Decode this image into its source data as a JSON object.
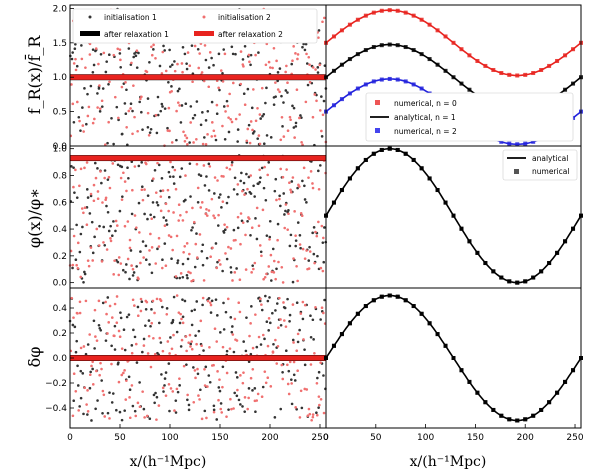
{
  "colors": {
    "black": "#000000",
    "red": "#e8231f",
    "blue": "#2222dd",
    "dot_black": "#333333",
    "dot_red": "#f07070"
  },
  "shared": {
    "xlabel": "x/(h⁻¹Mpc)",
    "xlim": [
      0,
      256
    ],
    "xticks": [
      "0",
      "50",
      "100",
      "150",
      "200",
      "250"
    ]
  },
  "chart_data": [
    {
      "type": "scatter",
      "row": 0,
      "col": 0,
      "ylabel": "f_R(x)/f̄_R",
      "ylim": [
        0,
        2.05
      ],
      "yticks": [
        "0.0",
        "0.5",
        "1.0",
        "1.5",
        "2.0"
      ],
      "series": [
        {
          "name": "initialisation 1",
          "kind": "random_points",
          "range": [
            0,
            2
          ]
        },
        {
          "name": "initialisation 2",
          "kind": "random_points",
          "range": [
            0,
            2
          ]
        },
        {
          "name": "after relaxation 1",
          "kind": "flat_band",
          "value": 1.0
        },
        {
          "name": "after relaxation 2",
          "kind": "flat_band",
          "value": 1.0
        }
      ],
      "legend": {
        "position": "top",
        "ncol": 2
      }
    },
    {
      "type": "line",
      "row": 0,
      "col": 1,
      "ylim": [
        0,
        2.05
      ],
      "series": [
        {
          "name": "numerical, n = 0",
          "offset": 1.5,
          "amplitude": 0.475,
          "color": "red"
        },
        {
          "name": "analytical, n = 1",
          "offset": 1.0,
          "amplitude": 0.475,
          "color": "black"
        },
        {
          "name": "numerical, n = 2",
          "offset": 0.5,
          "amplitude": 0.475,
          "color": "blue"
        }
      ],
      "legend": {
        "position": "lower-right"
      }
    },
    {
      "type": "scatter",
      "row": 1,
      "col": 0,
      "ylabel": "φ(x)/φ∗",
      "ylim": [
        -0.04,
        1.02
      ],
      "yticks": [
        "0.0",
        "0.2",
        "0.4",
        "0.6",
        "0.8",
        "1.0"
      ],
      "series": [
        {
          "name": "initialisation 1",
          "kind": "random_points",
          "range": [
            0,
            0.95
          ]
        },
        {
          "name": "initialisation 2",
          "kind": "random_points",
          "range": [
            0,
            0.95
          ]
        },
        {
          "name": "after relaxation 1",
          "kind": "flat_band",
          "value": 0.93
        },
        {
          "name": "after relaxation 2",
          "kind": "flat_band",
          "value": 0.93
        }
      ]
    },
    {
      "type": "line",
      "row": 1,
      "col": 1,
      "ylim": [
        -0.04,
        1.02
      ],
      "series": [
        {
          "name": "analytical",
          "offset": 0.5,
          "amplitude": 0.5,
          "color": "black"
        },
        {
          "name": "numerical",
          "offset": 0.5,
          "amplitude": 0.5,
          "color": "black"
        }
      ],
      "legend": {
        "position": "top-right"
      }
    },
    {
      "type": "scatter",
      "row": 2,
      "col": 0,
      "ylabel": "δφ",
      "ylim": [
        -0.56,
        0.56
      ],
      "yticks": [
        "−0.4",
        "−0.2",
        "0.0",
        "0.2",
        "0.4"
      ],
      "series": [
        {
          "name": "initialisation 1",
          "kind": "random_points",
          "range": [
            -0.5,
            0.5
          ]
        },
        {
          "name": "initialisation 2",
          "kind": "random_points",
          "range": [
            -0.5,
            0.5
          ]
        },
        {
          "name": "after relaxation 1",
          "kind": "flat_band",
          "value": 0.0
        },
        {
          "name": "after relaxation 2",
          "kind": "flat_band",
          "value": 0.0
        }
      ]
    },
    {
      "type": "line",
      "row": 2,
      "col": 1,
      "ylim": [
        -0.56,
        0.56
      ],
      "series": [
        {
          "name": "analytical",
          "offset": 0.0,
          "amplitude": 0.5,
          "color": "black"
        },
        {
          "name": "numerical",
          "offset": 0.0,
          "amplitude": 0.5,
          "color": "black"
        }
      ]
    }
  ],
  "legends": {
    "left": [
      "initialisation 1",
      "initialisation 2",
      "after relaxation 1",
      "after relaxation 2"
    ],
    "top_right": [
      "numerical, n = 0",
      "analytical, n = 1",
      "numerical, n = 2"
    ],
    "mid_right": [
      "analytical",
      "numerical"
    ]
  }
}
